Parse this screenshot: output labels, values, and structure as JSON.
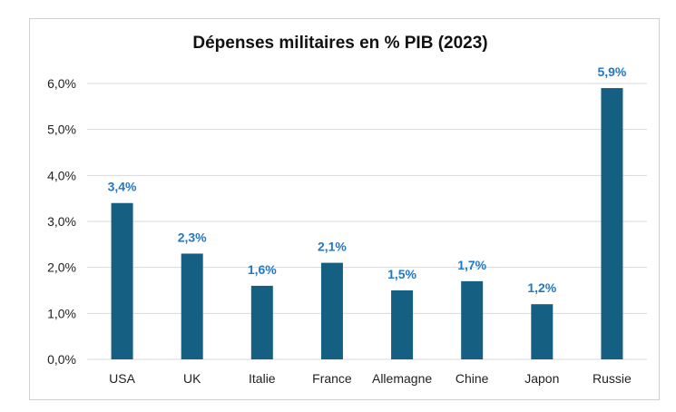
{
  "chart_data": {
    "type": "bar",
    "title": "Dépenses militaires en % PIB (2023)",
    "categories": [
      "USA",
      "UK",
      "Italie",
      "France",
      "Allemagne",
      "Chine",
      "Japon",
      "Russie"
    ],
    "values": [
      3.4,
      2.3,
      1.6,
      2.1,
      1.5,
      1.7,
      1.2,
      5.9
    ],
    "data_labels": [
      "3,4%",
      "2,3%",
      "1,6%",
      "2,1%",
      "1,5%",
      "1,7%",
      "1,2%",
      "5,9%"
    ],
    "yticks": [
      0,
      1,
      2,
      3,
      4,
      5,
      6
    ],
    "ytick_labels": [
      "0,0%",
      "1,0%",
      "2,0%",
      "3,0%",
      "4,0%",
      "5,0%",
      "6,0%"
    ],
    "ylim": [
      0,
      6
    ],
    "xlabel": "",
    "ylabel": "",
    "grid": true,
    "legend": "none",
    "colors": {
      "bar": "#156082",
      "data_label": "#1F78C8",
      "grid": "#d9d9d9"
    }
  }
}
